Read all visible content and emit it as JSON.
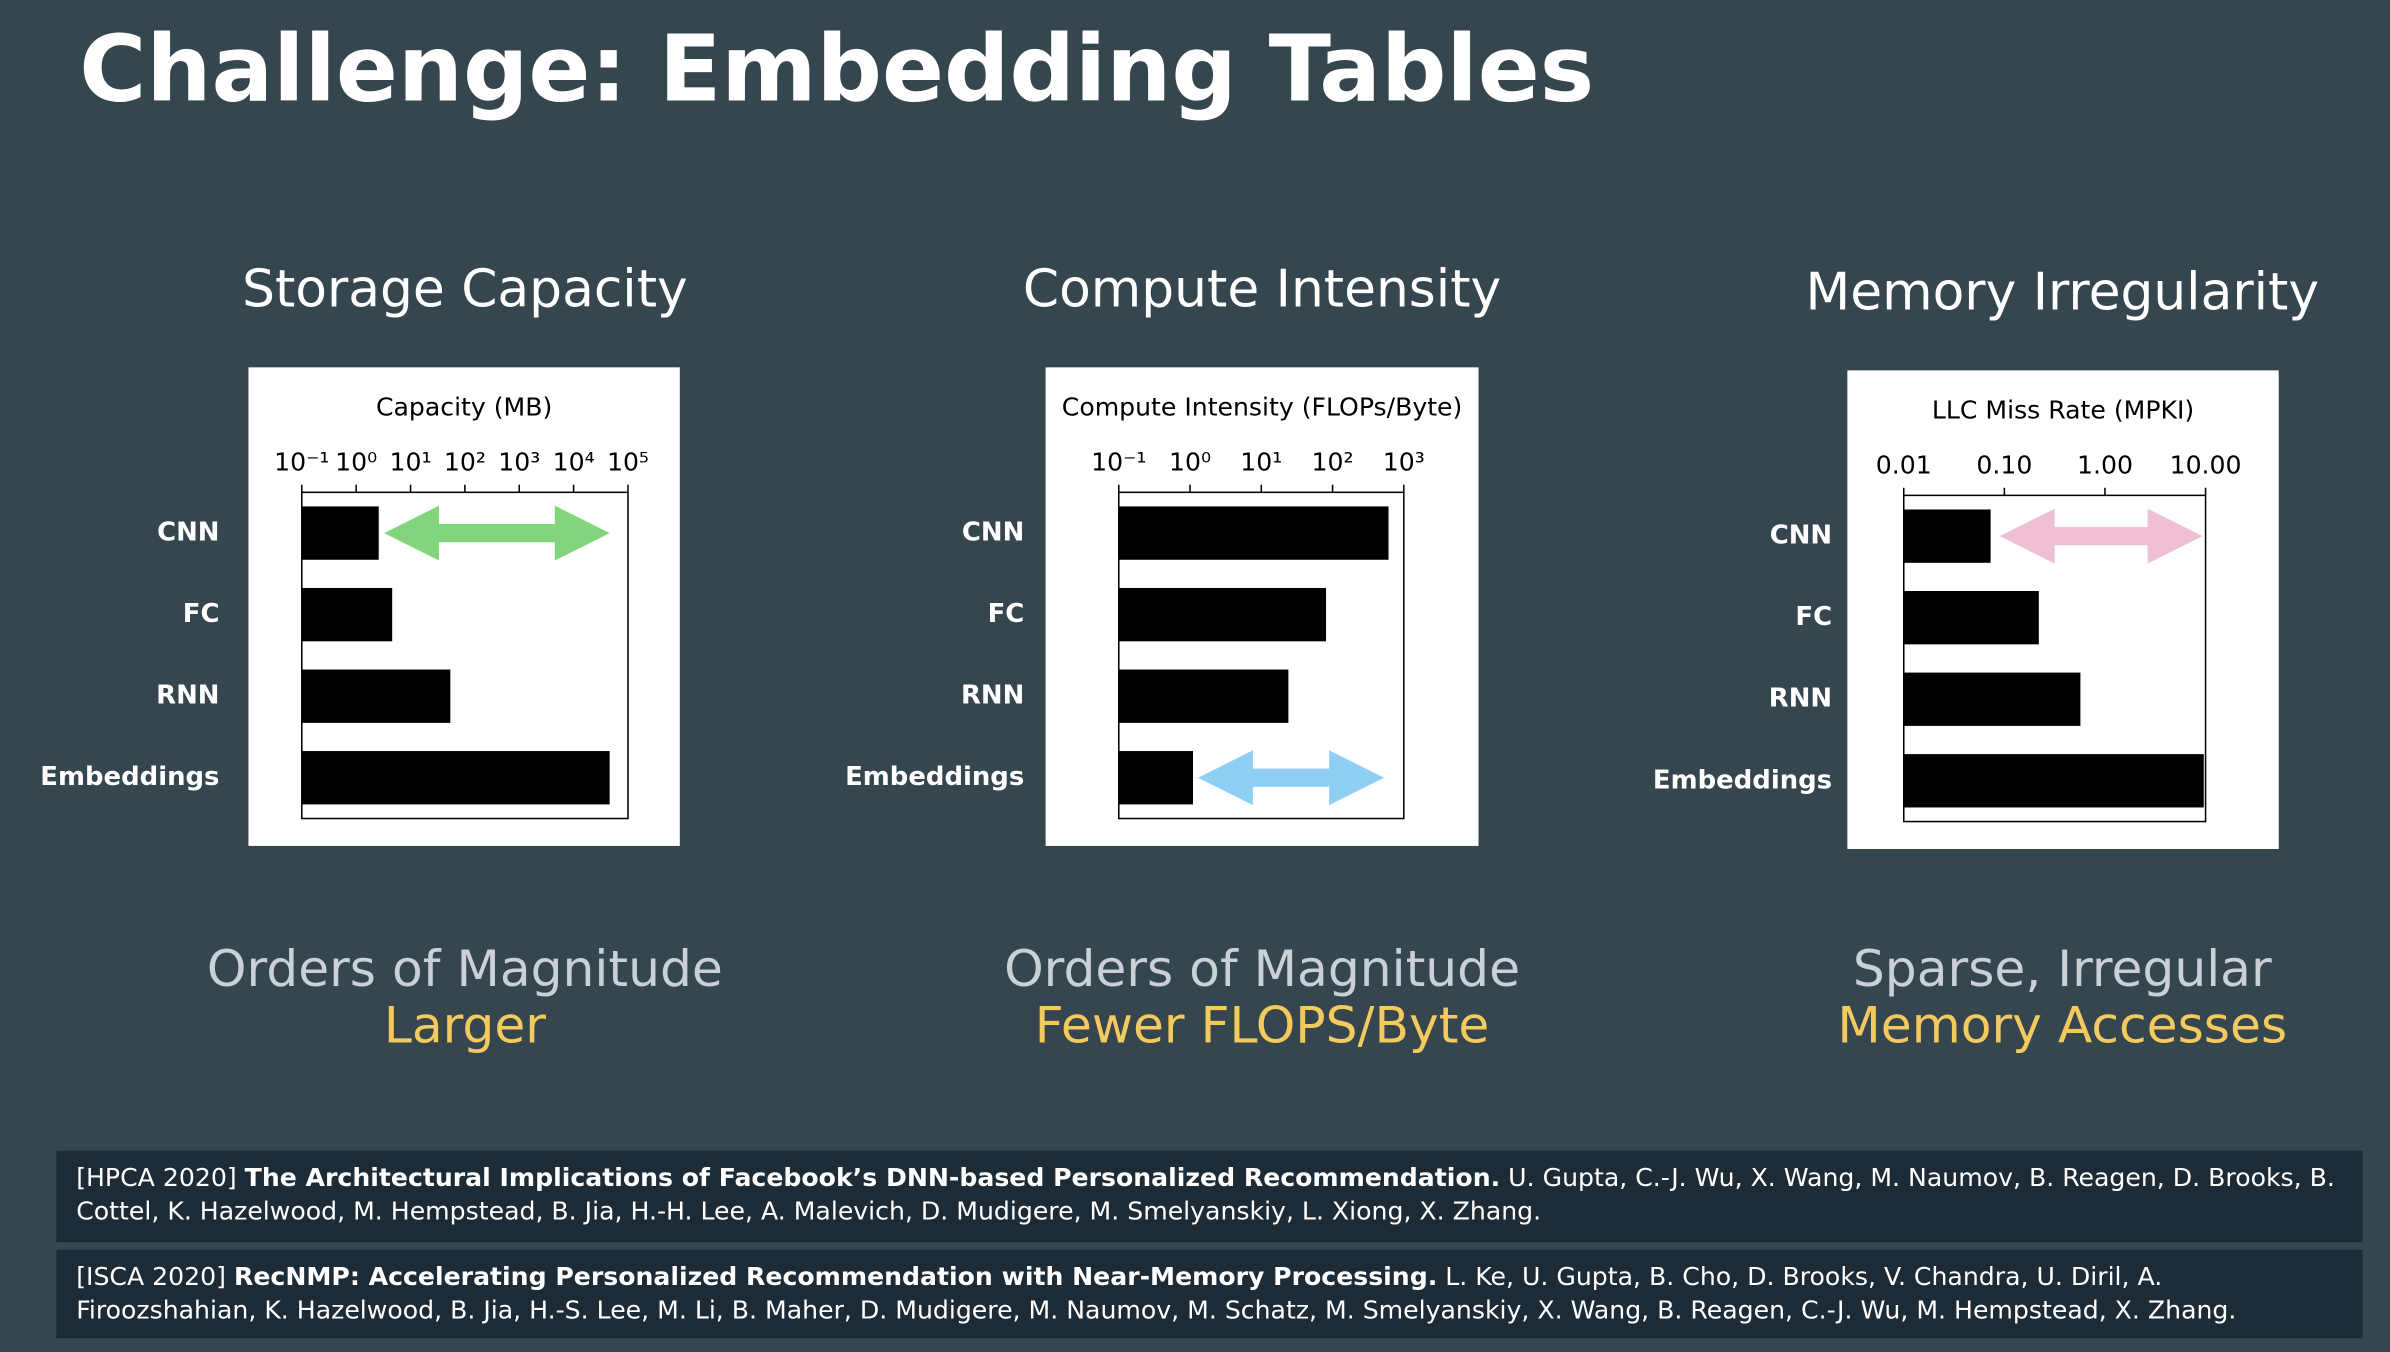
{
  "slide": {
    "title": "Challenge: Embedding Tables",
    "references": [
      {
        "venue": "[HPCA 2020]",
        "title": "The Architectural Implications of Facebook’s DNN-based Personalized Recommendation.",
        "authors": "U. Gupta, C.-J. Wu, X. Wang, M. Naumov, B. Reagen, D. Brooks, B. Cottel, K. Hazelwood, M. Hempstead, B. Jia, H.-H. Lee, A. Malevich, D. Mudigere, M. Smelyanskiy, L. Xiong, X. Zhang."
      },
      {
        "venue": "[ISCA 2020]",
        "title": "RecNMP: Accelerating Personalized Recommendation with Near-Memory Processing.",
        "authors": "L. Ke, U. Gupta, B. Cho, D. Brooks, V. Chandra, U. Diril, A. Firoozshahian, K. Hazelwood, B. Jia, H.-S. Lee, M. Li, B. Maher, D. Mudigere, M. Naumov, M. Schatz, M. Smelyanskiy, X. Wang, B. Reagen, C.-J. Wu, M. Hempstead, X. Zhang."
      }
    ]
  },
  "chart_data": [
    {
      "type": "bar",
      "orientation": "horizontal",
      "title": "Storage Capacity",
      "xlabel": "Capacity (MB)",
      "categories": [
        "CNN",
        "FC",
        "RNN",
        "Embeddings"
      ],
      "values": [
        2.6,
        4.6,
        54,
        46000
      ],
      "color": "#000000",
      "xscale": "log",
      "xlim": [
        0.1,
        100000
      ],
      "xticks": [
        {
          "value": 0.1,
          "label": "10⁻¹"
        },
        {
          "value": 1,
          "label": "10⁰"
        },
        {
          "value": 10,
          "label": "10¹"
        },
        {
          "value": 100,
          "label": "10²"
        },
        {
          "value": 1000,
          "label": "10³"
        },
        {
          "value": 10000,
          "label": "10⁴"
        },
        {
          "value": 100000,
          "label": "10⁵"
        }
      ],
      "caption": "Orders of Magnitude",
      "highlight": "Larger"
    },
    {
      "type": "bar",
      "orientation": "horizontal",
      "title": "Compute Intensity",
      "xlabel": "Compute Intensity (FLOPs/Byte)",
      "categories": [
        "CNN",
        "FC",
        "RNN",
        "Embeddings"
      ],
      "values": [
        610,
        81,
        24,
        1.1
      ],
      "color": "#000000",
      "xscale": "log",
      "xlim": [
        0.1,
        1000
      ],
      "xticks": [
        {
          "value": 0.1,
          "label": "10⁻¹"
        },
        {
          "value": 1,
          "label": "10⁰"
        },
        {
          "value": 10,
          "label": "10¹"
        },
        {
          "value": 100,
          "label": "10²"
        },
        {
          "value": 1000,
          "label": "10³"
        }
      ],
      "caption": "Orders of Magnitude",
      "highlight": "Fewer FLOPS/Byte"
    },
    {
      "type": "bar",
      "orientation": "horizontal",
      "title": "Memory Irregularity",
      "xlabel": "LLC Miss Rate (MPKI)",
      "categories": [
        "CNN",
        "FC",
        "RNN",
        "Embeddings"
      ],
      "values": [
        0.073,
        0.22,
        0.57,
        9.6
      ],
      "color": "#000000",
      "xscale": "log",
      "xlim": [
        0.01,
        10
      ],
      "xticks": [
        0.01,
        {
          "value": 0.1,
          "label": "0.10"
        },
        {
          "value": 1,
          "label": "1.00"
        },
        {
          "value": 10,
          "label": "10.00"
        }
      ],
      "caption": "Sparse, Irregular",
      "highlight": "Memory Accesses"
    }
  ]
}
